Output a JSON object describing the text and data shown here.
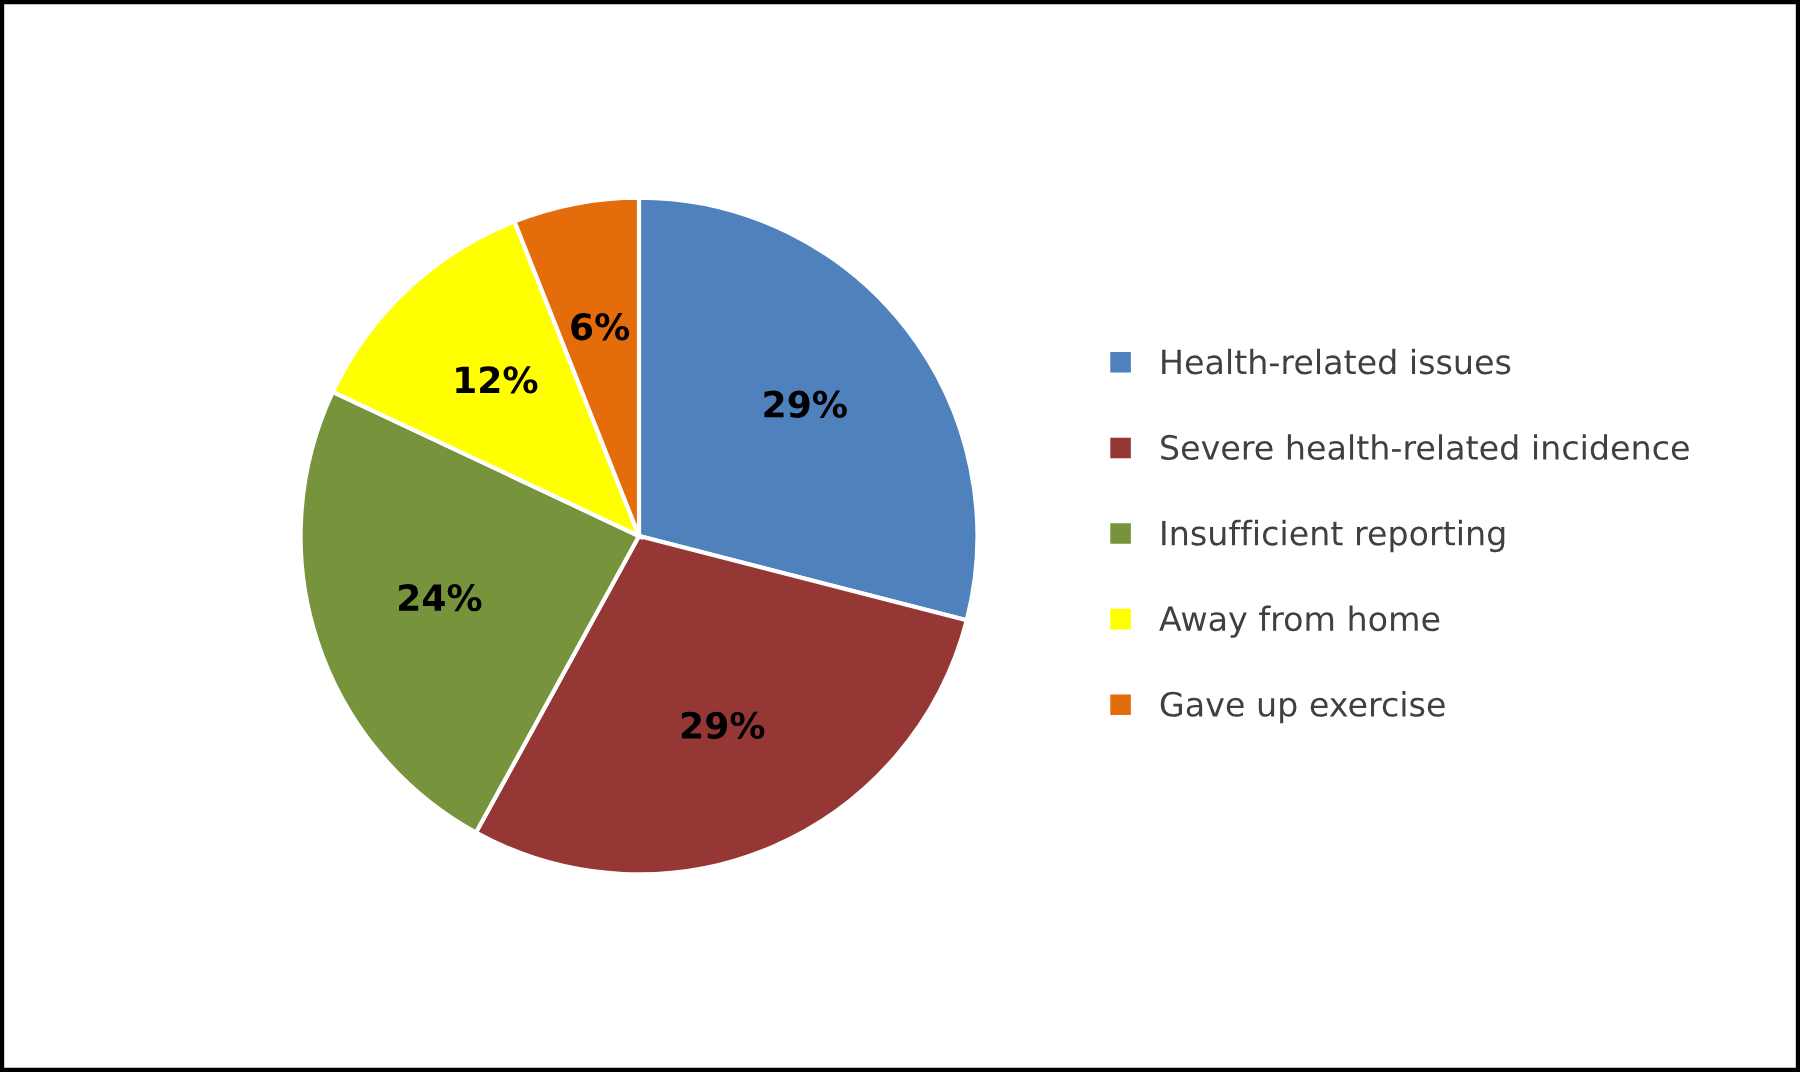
{
  "chart_data": {
    "type": "pie",
    "categories": [
      "Health-related issues",
      "Severe health-related incidence",
      "Insufficient reporting",
      "Away from home",
      "Gave up exercise"
    ],
    "values": [
      29,
      29,
      24,
      12,
      6
    ],
    "colors": [
      "#4f81bd",
      "#953735",
      "#77933c",
      "#ffff00",
      "#e46c0a"
    ],
    "value_labels": [
      "29%",
      "29%",
      "24%",
      "12%",
      "6%"
    ],
    "legend": "right"
  }
}
